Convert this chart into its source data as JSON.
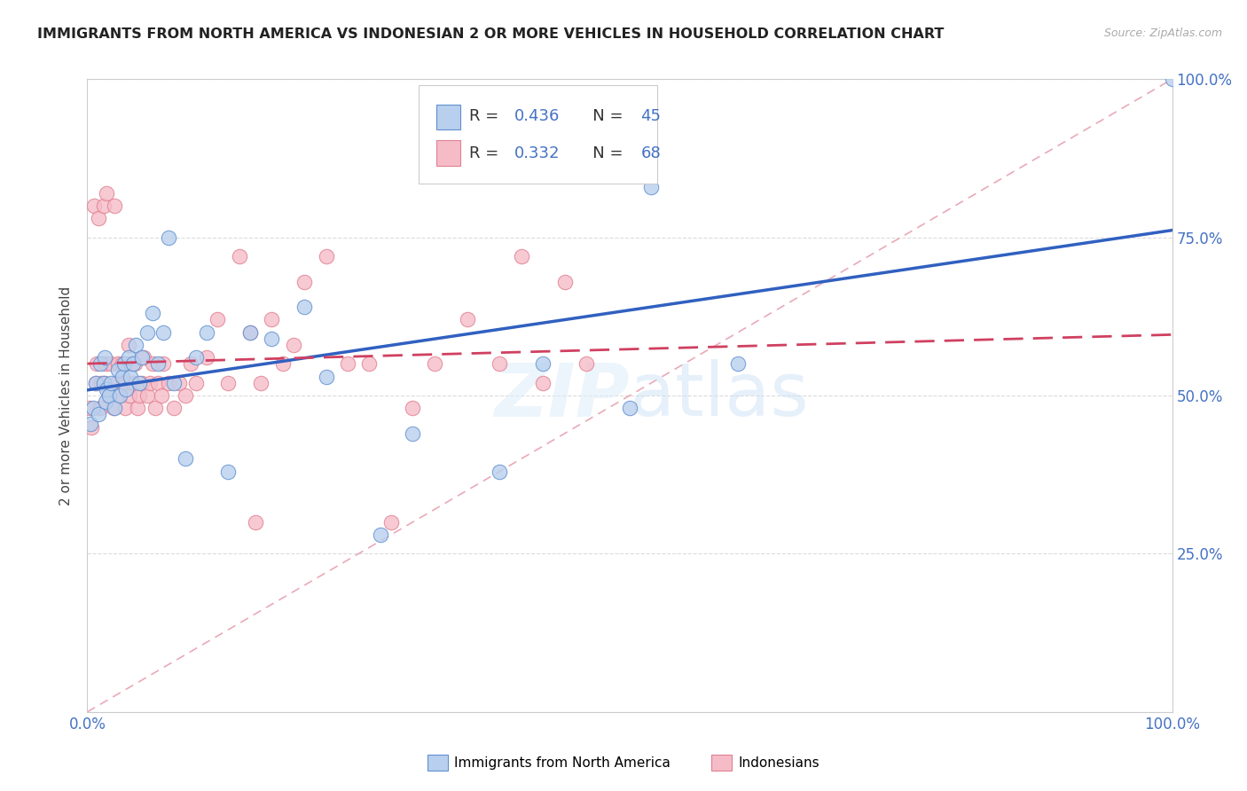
{
  "title": "IMMIGRANTS FROM NORTH AMERICA VS INDONESIAN 2 OR MORE VEHICLES IN HOUSEHOLD CORRELATION CHART",
  "source": "Source: ZipAtlas.com",
  "ylabel": "2 or more Vehicles in Household",
  "R1": 0.436,
  "N1": 45,
  "R2": 0.332,
  "N2": 68,
  "color_blue_fill": "#b8d0ee",
  "color_blue_edge": "#6090d0",
  "color_pink_fill": "#f5bcc8",
  "color_pink_edge": "#e08090",
  "color_blue_line": "#3060c0",
  "color_pink_line": "#d04060",
  "color_diag": "#e8a0b0",
  "color_accent": "#4472c4",
  "legend1_label": "Immigrants from North America",
  "legend2_label": "Indonesians",
  "blue_x": [
    0.003,
    0.005,
    0.008,
    0.01,
    0.012,
    0.015,
    0.016,
    0.017,
    0.018,
    0.02,
    0.022,
    0.025,
    0.028,
    0.03,
    0.032,
    0.034,
    0.036,
    0.038,
    0.04,
    0.042,
    0.045,
    0.048,
    0.05,
    0.055,
    0.06,
    0.065,
    0.07,
    0.075,
    0.08,
    0.09,
    0.1,
    0.11,
    0.13,
    0.15,
    0.17,
    0.2,
    0.22,
    0.27,
    0.3,
    0.38,
    0.42,
    0.5,
    0.52,
    0.6,
    1.0
  ],
  "blue_y": [
    0.455,
    0.48,
    0.52,
    0.47,
    0.55,
    0.52,
    0.56,
    0.49,
    0.51,
    0.5,
    0.52,
    0.48,
    0.54,
    0.5,
    0.53,
    0.55,
    0.51,
    0.56,
    0.53,
    0.55,
    0.58,
    0.52,
    0.56,
    0.6,
    0.63,
    0.55,
    0.6,
    0.75,
    0.52,
    0.4,
    0.56,
    0.6,
    0.38,
    0.6,
    0.59,
    0.64,
    0.53,
    0.28,
    0.44,
    0.38,
    0.55,
    0.48,
    0.83,
    0.55,
    1.0
  ],
  "pink_x": [
    0.002,
    0.004,
    0.006,
    0.008,
    0.009,
    0.01,
    0.012,
    0.013,
    0.015,
    0.016,
    0.017,
    0.018,
    0.02,
    0.022,
    0.024,
    0.025,
    0.027,
    0.028,
    0.03,
    0.032,
    0.033,
    0.035,
    0.036,
    0.038,
    0.039,
    0.04,
    0.042,
    0.044,
    0.046,
    0.048,
    0.05,
    0.052,
    0.055,
    0.058,
    0.06,
    0.063,
    0.065,
    0.068,
    0.07,
    0.075,
    0.08,
    0.085,
    0.09,
    0.095,
    0.1,
    0.11,
    0.12,
    0.13,
    0.14,
    0.15,
    0.155,
    0.16,
    0.17,
    0.18,
    0.19,
    0.2,
    0.22,
    0.24,
    0.26,
    0.28,
    0.3,
    0.32,
    0.35,
    0.38,
    0.4,
    0.42,
    0.44,
    0.46
  ],
  "pink_y": [
    0.48,
    0.45,
    0.8,
    0.52,
    0.55,
    0.78,
    0.48,
    0.52,
    0.8,
    0.52,
    0.55,
    0.82,
    0.5,
    0.55,
    0.48,
    0.8,
    0.52,
    0.55,
    0.5,
    0.55,
    0.52,
    0.48,
    0.52,
    0.58,
    0.5,
    0.55,
    0.52,
    0.55,
    0.48,
    0.5,
    0.52,
    0.56,
    0.5,
    0.52,
    0.55,
    0.48,
    0.52,
    0.5,
    0.55,
    0.52,
    0.48,
    0.52,
    0.5,
    0.55,
    0.52,
    0.56,
    0.62,
    0.52,
    0.72,
    0.6,
    0.3,
    0.52,
    0.62,
    0.55,
    0.58,
    0.68,
    0.72,
    0.55,
    0.55,
    0.3,
    0.48,
    0.55,
    0.62,
    0.55,
    0.72,
    0.52,
    0.68,
    0.55
  ]
}
